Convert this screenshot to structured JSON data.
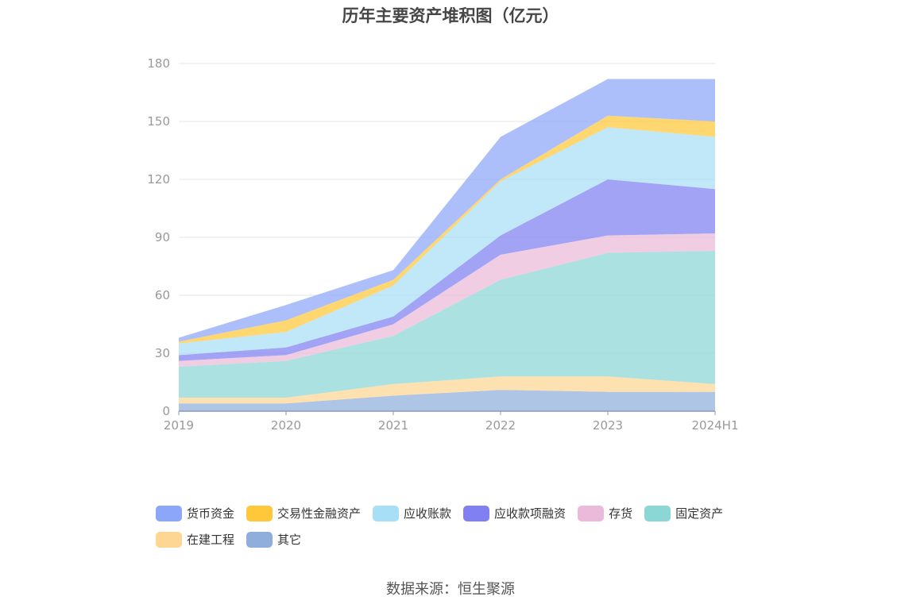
{
  "chart_data": {
    "type": "area",
    "title": "历年主要资产堆积图（亿元）",
    "categories": [
      "2019",
      "2020",
      "2021",
      "2022",
      "2023",
      "2024H1"
    ],
    "ylim": [
      0,
      180
    ],
    "yticks": [
      0,
      30,
      60,
      90,
      120,
      150,
      180
    ],
    "grid": true,
    "legend_position": "bottom",
    "stacked": true,
    "series": [
      {
        "name": "其它",
        "color": "#8FAEDC",
        "values": [
          4,
          4,
          8,
          11,
          10,
          10
        ]
      },
      {
        "name": "在建工程",
        "color": "#FCD692",
        "values": [
          3,
          3,
          6,
          7,
          8,
          4
        ]
      },
      {
        "name": "固定资产",
        "color": "#8AD7D6",
        "values": [
          16,
          19,
          25,
          50,
          64,
          69
        ]
      },
      {
        "name": "存货",
        "color": "#EBBADA",
        "values": [
          3,
          3,
          6,
          13,
          9,
          9
        ]
      },
      {
        "name": "应收款项融资",
        "color": "#8080F2",
        "values": [
          3,
          4,
          4,
          10,
          29,
          23
        ]
      },
      {
        "name": "应收账款",
        "color": "#A7DFF6",
        "values": [
          6,
          8,
          16,
          28,
          27,
          27
        ]
      },
      {
        "name": "交易性金融资产",
        "color": "#FFC73A",
        "values": [
          1,
          6,
          3,
          1,
          6,
          8
        ]
      },
      {
        "name": "货币资金",
        "color": "#8CA6FA",
        "values": [
          2,
          8,
          5,
          22,
          19,
          22
        ]
      }
    ],
    "legend_order": [
      "货币资金",
      "交易性金融资产",
      "应收账款",
      "应收款项融资",
      "存货",
      "固定资产",
      "在建工程",
      "其它"
    ]
  },
  "source": "数据来源：恒生聚源"
}
